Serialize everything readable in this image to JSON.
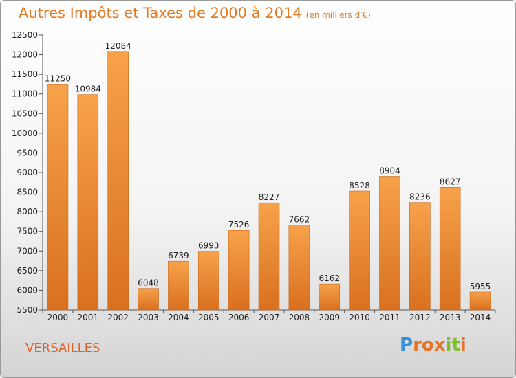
{
  "page": {
    "title": "Autres Impôts et Taxes de 2000 à 2014",
    "unit": "(en milliers d'€)",
    "city": "VERSAILLES",
    "logo": {
      "letters": [
        "P",
        "r",
        "o",
        "x",
        "i",
        "t",
        "i"
      ],
      "colors": [
        "#3b8fd6",
        "#e8742a",
        "#e8742a",
        "#e8742a",
        "#7fbf2a",
        "#7fbf2a",
        "#e8742a"
      ]
    }
  },
  "chart_data": {
    "type": "bar",
    "title": "Autres Impôts et Taxes de 2000 à 2014",
    "subtitle": "(en milliers d'€)",
    "categories": [
      "2000",
      "2001",
      "2002",
      "2003",
      "2004",
      "2005",
      "2006",
      "2007",
      "2008",
      "2009",
      "2010",
      "2011",
      "2012",
      "2013",
      "2014"
    ],
    "values": [
      11250,
      10984,
      12084,
      6048,
      6739,
      6993,
      7526,
      8227,
      7662,
      6162,
      8528,
      8904,
      8236,
      8627,
      5955
    ],
    "ylim": [
      5500,
      12500
    ],
    "yticks": [
      5500,
      6000,
      6500,
      7000,
      7500,
      8000,
      8500,
      9000,
      9500,
      10000,
      10500,
      11000,
      11500,
      12000,
      12500
    ],
    "grid": false,
    "bar_color": "#f0923a",
    "bar_color_dark": "#d9701f"
  }
}
